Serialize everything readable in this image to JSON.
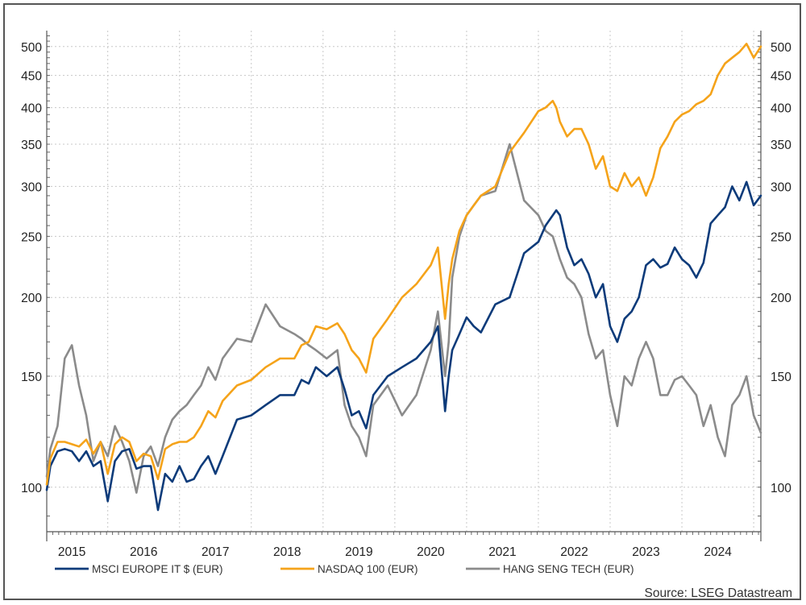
{
  "chart_data": {
    "type": "line",
    "title": "",
    "xlabel": "",
    "ylabel": "",
    "y_scale": "log",
    "ylim": [
      85,
      530
    ],
    "xlim": [
      2014.55,
      2024.5
    ],
    "y_ticks": [
      100,
      150,
      200,
      250,
      300,
      350,
      400,
      450,
      500
    ],
    "y_tick_labels": [
      "100",
      "150",
      "200",
      "250",
      "300",
      "350",
      "400",
      "450",
      "500"
    ],
    "x_ticks": [
      2015,
      2016,
      2017,
      2018,
      2019,
      2020,
      2021,
      2022,
      2023,
      2024
    ],
    "x_tick_labels": [
      "2015",
      "2016",
      "2017",
      "2018",
      "2019",
      "2020",
      "2021",
      "2022",
      "2023",
      "2024"
    ],
    "grid": true,
    "legend_position": "bottom",
    "source": "Source: LSEG Datastream",
    "series": [
      {
        "name": "MSCI EUROPE IT $ (EUR)",
        "color": "#0d3b7a",
        "x": [
          2014.55,
          2014.6,
          2014.7,
          2014.8,
          2014.9,
          2015.0,
          2015.1,
          2015.2,
          2015.3,
          2015.4,
          2015.5,
          2015.6,
          2015.7,
          2015.8,
          2015.9,
          2016.0,
          2016.1,
          2016.2,
          2016.3,
          2016.4,
          2016.5,
          2016.6,
          2016.7,
          2016.8,
          2016.9,
          2017.0,
          2017.2,
          2017.4,
          2017.6,
          2017.8,
          2018.0,
          2018.1,
          2018.2,
          2018.3,
          2018.45,
          2018.6,
          2018.7,
          2018.8,
          2018.9,
          2019.0,
          2019.1,
          2019.3,
          2019.5,
          2019.7,
          2019.9,
          2020.0,
          2020.1,
          2020.15,
          2020.2,
          2020.3,
          2020.4,
          2020.5,
          2020.6,
          2020.8,
          2021.0,
          2021.2,
          2021.4,
          2021.5,
          2021.6,
          2021.65,
          2021.7,
          2021.8,
          2021.9,
          2022.0,
          2022.1,
          2022.2,
          2022.3,
          2022.4,
          2022.5,
          2022.6,
          2022.7,
          2022.8,
          2022.9,
          2023.0,
          2023.1,
          2023.2,
          2023.3,
          2023.4,
          2023.5,
          2023.6,
          2023.7,
          2023.8,
          2023.9,
          2024.0,
          2024.1,
          2024.2,
          2024.3,
          2024.4,
          2024.5
        ],
        "values": [
          99,
          108,
          114,
          115,
          114,
          110,
          114,
          108,
          110,
          95,
          110,
          114,
          115,
          107,
          108,
          108,
          92,
          105,
          102,
          108,
          102,
          103,
          108,
          112,
          105,
          112,
          128,
          130,
          135,
          140,
          140,
          148,
          146,
          155,
          150,
          155,
          143,
          130,
          132,
          124,
          140,
          150,
          155,
          160,
          170,
          180,
          132,
          150,
          165,
          175,
          186,
          180,
          176,
          195,
          200,
          235,
          245,
          260,
          270,
          275,
          270,
          240,
          225,
          230,
          218,
          200,
          210,
          180,
          170,
          185,
          190,
          200,
          225,
          230,
          223,
          226,
          240,
          230,
          225,
          215,
          227,
          262,
          270,
          278,
          300,
          285,
          305,
          280,
          290
        ]
      },
      {
        "name": "NASDAQ 100 (EUR)",
        "color": "#f5a31a",
        "x": [
          2014.55,
          2014.6,
          2014.7,
          2014.8,
          2014.9,
          2015.0,
          2015.1,
          2015.2,
          2015.3,
          2015.4,
          2015.5,
          2015.6,
          2015.7,
          2015.8,
          2015.9,
          2016.0,
          2016.1,
          2016.2,
          2016.3,
          2016.4,
          2016.5,
          2016.6,
          2016.7,
          2016.8,
          2016.9,
          2017.0,
          2017.2,
          2017.4,
          2017.6,
          2017.8,
          2018.0,
          2018.1,
          2018.2,
          2018.3,
          2018.45,
          2018.6,
          2018.7,
          2018.8,
          2018.9,
          2019.0,
          2019.1,
          2019.3,
          2019.5,
          2019.7,
          2019.9,
          2020.0,
          2020.1,
          2020.15,
          2020.2,
          2020.3,
          2020.4,
          2020.5,
          2020.6,
          2020.8,
          2021.0,
          2021.2,
          2021.4,
          2021.5,
          2021.6,
          2021.65,
          2021.7,
          2021.8,
          2021.9,
          2022.0,
          2022.1,
          2022.2,
          2022.3,
          2022.4,
          2022.5,
          2022.6,
          2022.7,
          2022.8,
          2022.9,
          2023.0,
          2023.1,
          2023.2,
          2023.3,
          2023.4,
          2023.5,
          2023.6,
          2023.7,
          2023.8,
          2023.9,
          2024.0,
          2024.1,
          2024.2,
          2024.3,
          2024.4,
          2024.5
        ],
        "values": [
          101,
          111,
          118,
          118,
          117,
          116,
          119,
          113,
          118,
          105,
          117,
          120,
          118,
          110,
          113,
          112,
          103,
          115,
          117,
          118,
          118,
          120,
          125,
          132,
          129,
          137,
          145,
          148,
          155,
          160,
          160,
          168,
          170,
          180,
          178,
          182,
          175,
          165,
          160,
          152,
          172,
          185,
          200,
          210,
          225,
          240,
          185,
          210,
          230,
          255,
          270,
          280,
          290,
          300,
          340,
          365,
          395,
          400,
          410,
          400,
          380,
          360,
          370,
          370,
          350,
          320,
          335,
          300,
          295,
          315,
          300,
          310,
          290,
          310,
          345,
          360,
          380,
          390,
          395,
          405,
          410,
          420,
          450,
          470,
          480,
          490,
          505,
          480,
          500
        ]
      },
      {
        "name": "HANG SENG TECH (EUR)",
        "color": "#8b8b8b",
        "x": [
          2014.55,
          2014.6,
          2014.7,
          2014.8,
          2014.9,
          2015.0,
          2015.1,
          2015.2,
          2015.3,
          2015.4,
          2015.5,
          2015.6,
          2015.7,
          2015.8,
          2015.9,
          2016.0,
          2016.1,
          2016.2,
          2016.3,
          2016.4,
          2016.5,
          2016.6,
          2016.7,
          2016.8,
          2016.9,
          2017.0,
          2017.2,
          2017.4,
          2017.6,
          2017.8,
          2018.0,
          2018.1,
          2018.2,
          2018.3,
          2018.45,
          2018.6,
          2018.7,
          2018.8,
          2018.9,
          2019.0,
          2019.1,
          2019.3,
          2019.5,
          2019.7,
          2019.9,
          2020.0,
          2020.1,
          2020.15,
          2020.2,
          2020.3,
          2020.4,
          2020.5,
          2020.6,
          2020.8,
          2021.0,
          2021.2,
          2021.4,
          2021.5,
          2021.6,
          2021.65,
          2021.7,
          2021.8,
          2021.9,
          2022.0,
          2022.1,
          2022.2,
          2022.3,
          2022.4,
          2022.5,
          2022.6,
          2022.7,
          2022.8,
          2022.9,
          2023.0,
          2023.1,
          2023.2,
          2023.3,
          2023.4,
          2023.5,
          2023.6,
          2023.7,
          2023.8,
          2023.9,
          2024.0,
          2024.1,
          2024.2,
          2024.3,
          2024.4,
          2024.5
        ],
        "values": [
          104,
          115,
          125,
          160,
          168,
          145,
          130,
          110,
          118,
          112,
          125,
          118,
          110,
          98,
          112,
          116,
          108,
          120,
          128,
          132,
          135,
          140,
          145,
          155,
          148,
          160,
          172,
          170,
          195,
          180,
          175,
          172,
          168,
          165,
          160,
          165,
          135,
          125,
          120,
          112,
          135,
          145,
          130,
          140,
          165,
          190,
          150,
          170,
          215,
          250,
          270,
          280,
          290,
          295,
          350,
          285,
          270,
          255,
          250,
          240,
          230,
          215,
          210,
          200,
          175,
          160,
          165,
          140,
          125,
          150,
          145,
          160,
          170,
          160,
          140,
          140,
          148,
          150,
          145,
          140,
          125,
          135,
          120,
          112,
          135,
          140,
          150,
          130,
          122
        ]
      }
    ]
  }
}
